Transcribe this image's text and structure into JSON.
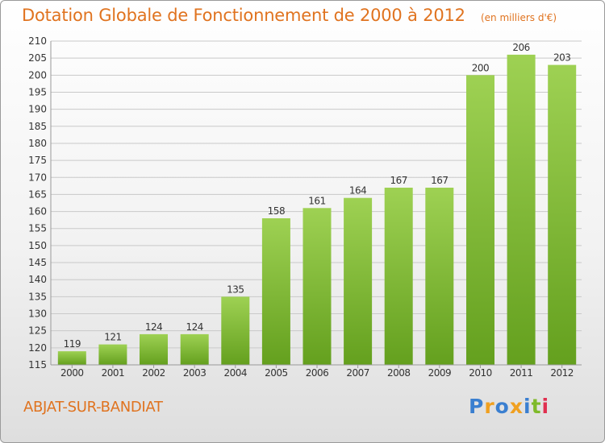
{
  "header": {
    "title": "Dotation Globale de Fonctionnement de 2000 à 2012",
    "subtitle": "(en milliers d'€)"
  },
  "footer": {
    "city": "ABJAT-SUR-BANDIAT",
    "logo": "Proxiti"
  },
  "colors": {
    "title": "#e0731f",
    "bar_top": "#9ed153",
    "bar_bottom": "#64a01e",
    "grid": "#c9c9c9",
    "logo_letters": [
      "#3a7fd0",
      "#f0a020",
      "#3a7fd0",
      "#f0a020",
      "#3a7fd0",
      "#7fba2a",
      "#e03050"
    ]
  },
  "chart_data": {
    "type": "bar",
    "title": "Dotation Globale de Fonctionnement de 2000 à 2012",
    "subtitle": "(en milliers d'€)",
    "categories": [
      "2000",
      "2001",
      "2002",
      "2003",
      "2004",
      "2005",
      "2006",
      "2007",
      "2008",
      "2009",
      "2010",
      "2011",
      "2012"
    ],
    "values": [
      119,
      121,
      124,
      124,
      135,
      158,
      161,
      164,
      167,
      167,
      200,
      206,
      203
    ],
    "ylim": [
      115,
      210
    ],
    "yticks": [
      115,
      120,
      125,
      130,
      135,
      140,
      145,
      150,
      155,
      160,
      165,
      170,
      175,
      180,
      185,
      190,
      195,
      200,
      205,
      210
    ],
    "grid": true,
    "xlabel": "",
    "ylabel": ""
  }
}
